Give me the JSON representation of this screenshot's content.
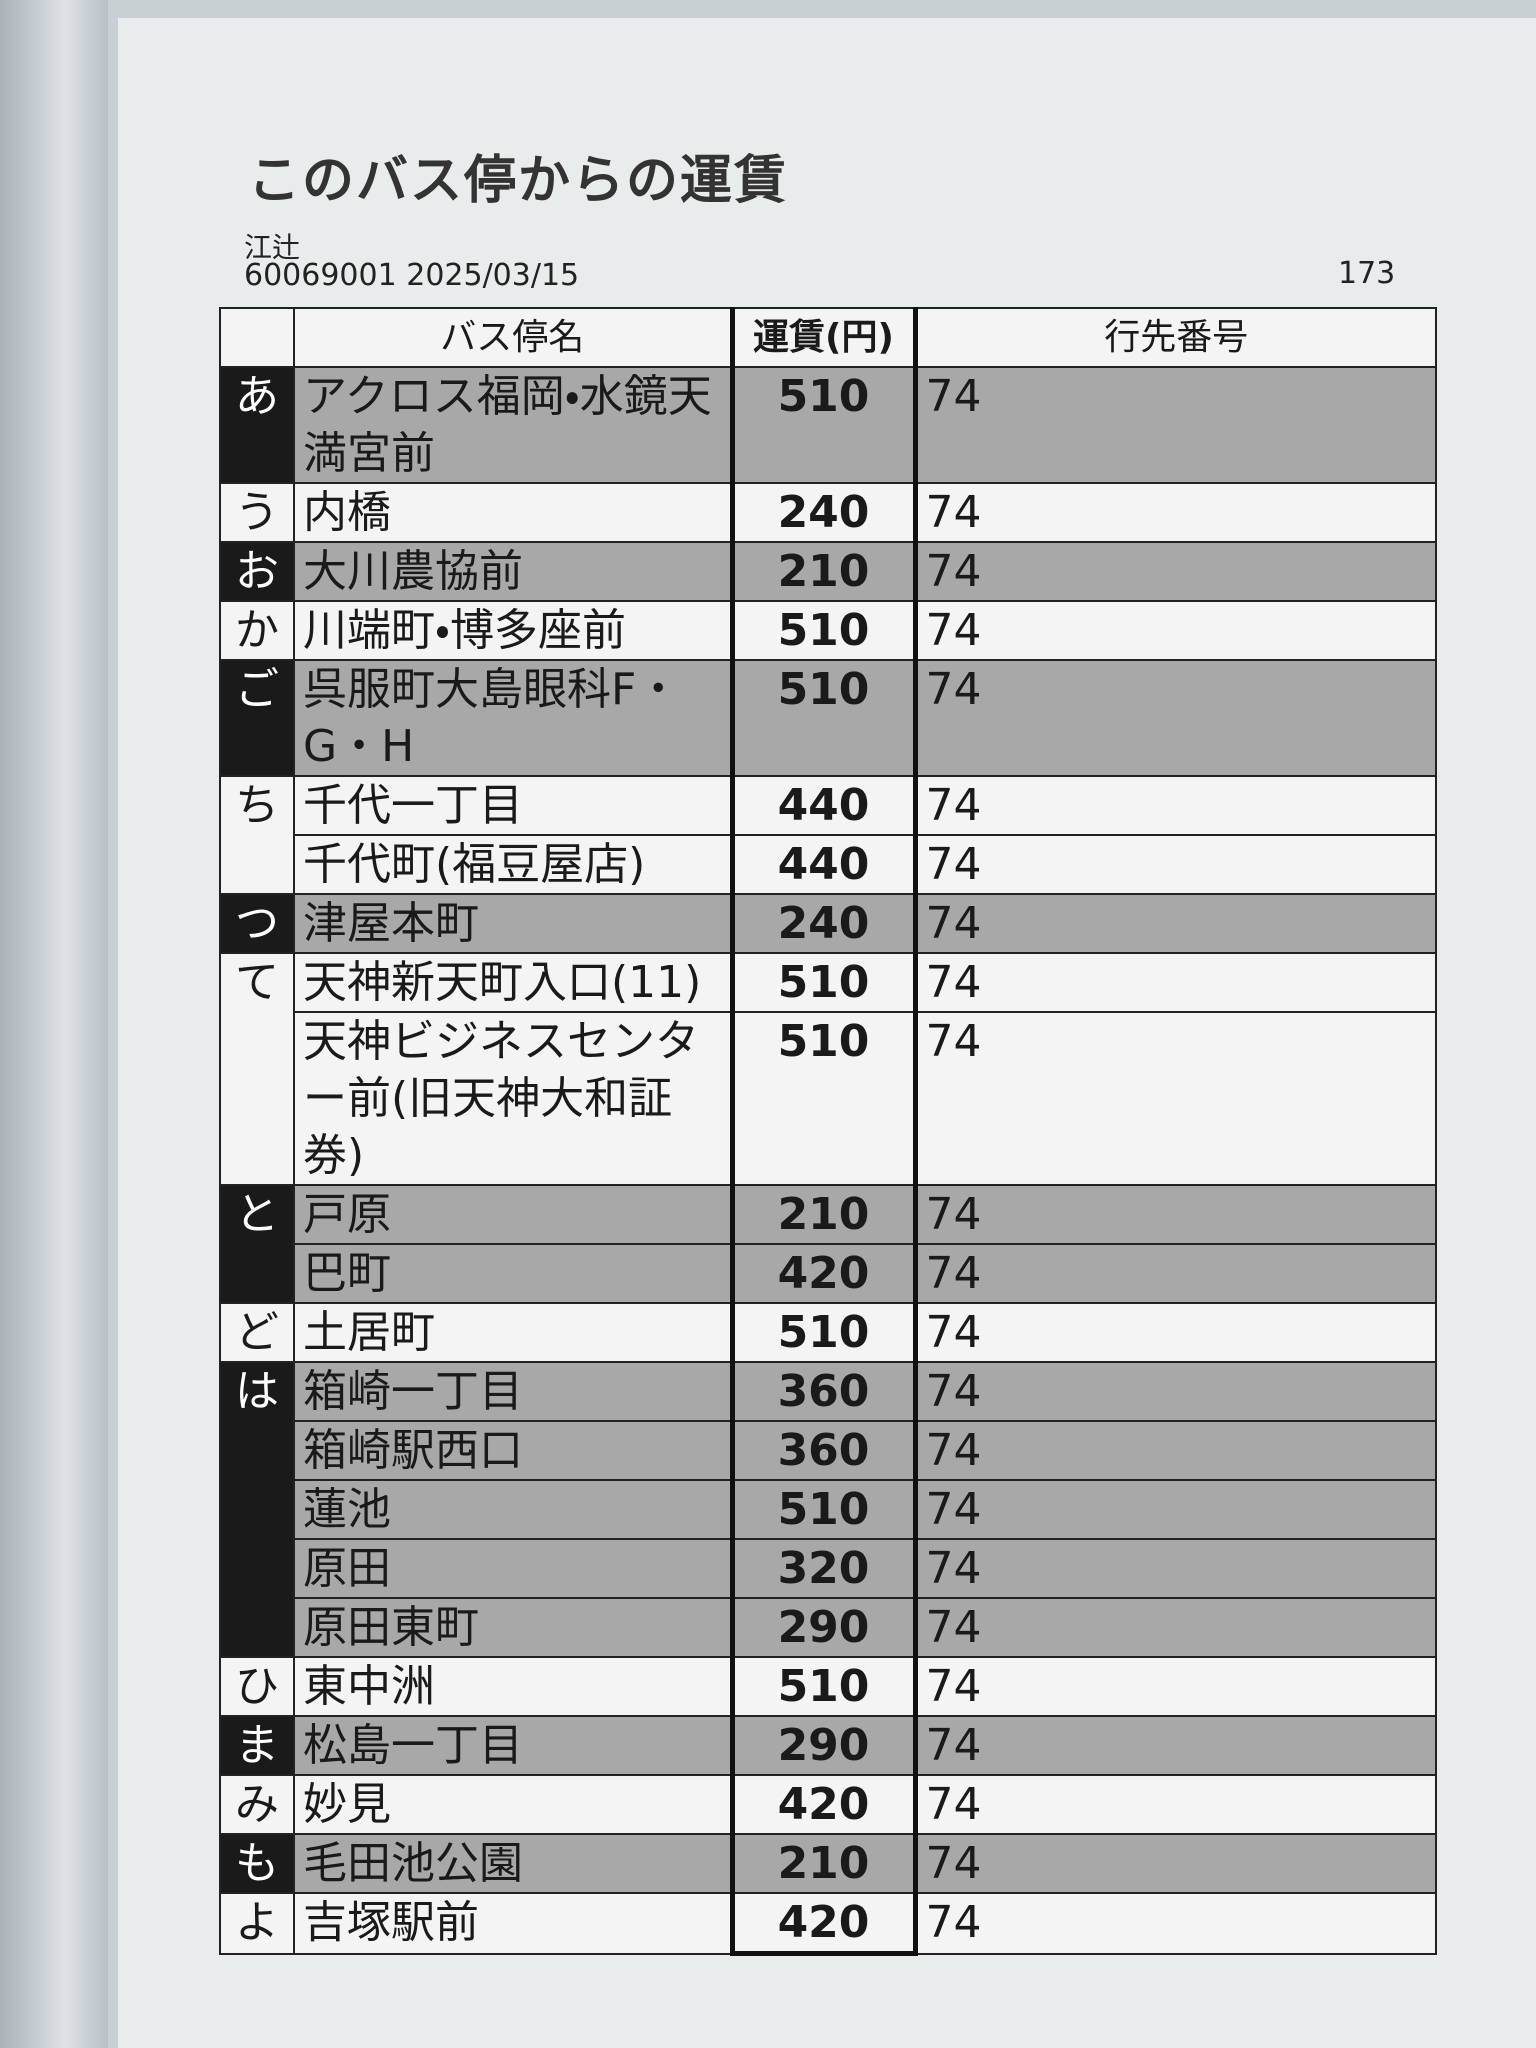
{
  "header": {
    "title": "このバス停からの運賃",
    "stop": "江辻",
    "code_date": "60069001 2025/03/15",
    "page": "173"
  },
  "table": {
    "columns": [
      "バス停名",
      "運賃(円)",
      "行先番号"
    ],
    "groups": [
      {
        "kana": "あ",
        "rows": [
          {
            "name": "アクロス福岡・水鏡天満宮前",
            "fare": "510",
            "dest": "74"
          }
        ]
      },
      {
        "kana": "う",
        "rows": [
          {
            "name": "内橋",
            "fare": "240",
            "dest": "74"
          }
        ]
      },
      {
        "kana": "お",
        "rows": [
          {
            "name": "大川農協前",
            "fare": "210",
            "dest": "74"
          }
        ]
      },
      {
        "kana": "か",
        "rows": [
          {
            "name": "川端町・博多座前",
            "fare": "510",
            "dest": "74"
          }
        ]
      },
      {
        "kana": "ご",
        "rows": [
          {
            "name": "呉服町大島眼科F・G・H",
            "fare": "510",
            "dest": "74"
          }
        ]
      },
      {
        "kana": "ち",
        "rows": [
          {
            "name": "千代一丁目",
            "fare": "440",
            "dest": "74"
          },
          {
            "name": "千代町(福豆屋店)",
            "fare": "440",
            "dest": "74"
          }
        ]
      },
      {
        "kana": "つ",
        "rows": [
          {
            "name": "津屋本町",
            "fare": "240",
            "dest": "74"
          }
        ]
      },
      {
        "kana": "て",
        "rows": [
          {
            "name": "天神新天町入口(11)",
            "fare": "510",
            "dest": "74"
          },
          {
            "name": "天神ビジネスセンター前(旧天神大和証券)",
            "fare": "510",
            "dest": "74"
          }
        ]
      },
      {
        "kana": "と",
        "rows": [
          {
            "name": "戸原",
            "fare": "210",
            "dest": "74"
          },
          {
            "name": "巴町",
            "fare": "420",
            "dest": "74"
          }
        ]
      },
      {
        "kana": "ど",
        "rows": [
          {
            "name": "土居町",
            "fare": "510",
            "dest": "74"
          }
        ]
      },
      {
        "kana": "は",
        "rows": [
          {
            "name": "箱崎一丁目",
            "fare": "360",
            "dest": "74"
          },
          {
            "name": "箱崎駅西口",
            "fare": "360",
            "dest": "74"
          },
          {
            "name": "蓮池",
            "fare": "510",
            "dest": "74"
          },
          {
            "name": "原田",
            "fare": "320",
            "dest": "74"
          },
          {
            "name": "原田東町",
            "fare": "290",
            "dest": "74"
          }
        ]
      },
      {
        "kana": "ひ",
        "rows": [
          {
            "name": "東中洲",
            "fare": "510",
            "dest": "74"
          }
        ]
      },
      {
        "kana": "ま",
        "rows": [
          {
            "name": "松島一丁目",
            "fare": "290",
            "dest": "74"
          }
        ]
      },
      {
        "kana": "み",
        "rows": [
          {
            "name": "妙見",
            "fare": "420",
            "dest": "74"
          }
        ]
      },
      {
        "kana": "も",
        "rows": [
          {
            "name": "毛田池公園",
            "fare": "210",
            "dest": "74"
          }
        ]
      },
      {
        "kana": "よ",
        "rows": [
          {
            "name": "吉塚駅前",
            "fare": "420",
            "dest": "74"
          }
        ]
      }
    ]
  }
}
